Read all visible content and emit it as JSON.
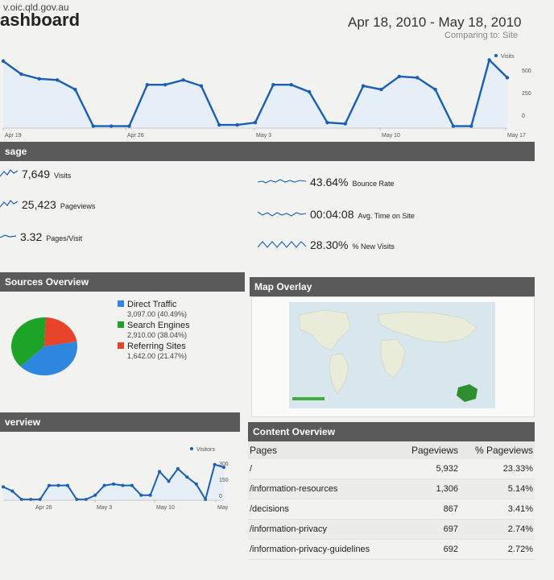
{
  "header": {
    "site_url": "v.oic.qld.gov.au",
    "title": "ashboard",
    "date_range": "Apr 18, 2010 - May 18, 2010",
    "comparing": "Comparing to: Site"
  },
  "colors": {
    "line": "#1a5fb4",
    "bar": "#5a5a5a",
    "direct": "#2e86de",
    "search": "#1ea329",
    "referring": "#e8432b"
  },
  "top_chart": {
    "legend": "Visits",
    "y_ticks": [
      "500",
      "250",
      "0"
    ],
    "x_ticks": [
      "Apr 19",
      "Apr 26",
      "May 3",
      "May 10",
      "May 17"
    ]
  },
  "usage": {
    "title": "sage",
    "metrics": [
      {
        "value": "7,649",
        "label": "Visits"
      },
      {
        "value": "25,423",
        "label": "Pageviews"
      },
      {
        "value": "3.32",
        "label": "Pages/Visit"
      },
      {
        "value": "43.64%",
        "label": "Bounce Rate"
      },
      {
        "value": "00:04:08",
        "label": "Avg. Time on Site"
      },
      {
        "value": "28.30%",
        "label": "% New Visits"
      }
    ]
  },
  "sources": {
    "title": "Sources Overview",
    "items": [
      {
        "name": "Direct Traffic",
        "detail": "3,097.00 (40.49%)"
      },
      {
        "name": "Search Engines",
        "detail": "2,910.00 (38.04%)"
      },
      {
        "name": "Referring Sites",
        "detail": "1,642.00 (21.47%)"
      }
    ]
  },
  "map": {
    "title": "Map Overlay"
  },
  "bottom_chart": {
    "section_title": "verview",
    "legend": "Visitors",
    "y_ticks": [
      "300",
      "150",
      "0"
    ],
    "x_ticks": [
      "Apr 26",
      "May 3",
      "May 10",
      "May"
    ]
  },
  "content": {
    "title": "Content Overview",
    "headers": [
      "Pages",
      "Pageviews",
      "% Pageviews"
    ],
    "rows": [
      [
        "/",
        "5,932",
        "23.33%"
      ],
      [
        "/information-resources",
        "1,306",
        "5.14%"
      ],
      [
        "/decisions",
        "867",
        "3.41%"
      ],
      [
        "/information-privacy",
        "697",
        "2.74%"
      ],
      [
        "/information-privacy-guidelines",
        "692",
        "2.72%"
      ]
    ]
  },
  "chart_data": [
    {
      "type": "line",
      "title": "",
      "series": [
        {
          "name": "Visits",
          "values": [
            560,
            450,
            410,
            400,
            320,
            10,
            10,
            10,
            360,
            360,
            400,
            350,
            20,
            20,
            40,
            360,
            360,
            300,
            40,
            30,
            350,
            320,
            430,
            420,
            320,
            10,
            10,
            570,
            420
          ]
        }
      ],
      "x_ticks": [
        "Apr 19",
        "Apr 26",
        "May 3",
        "May 10",
        "May 17"
      ],
      "ylim": [
        0,
        600
      ]
    },
    {
      "type": "pie",
      "title": "",
      "categories": [
        "Direct Traffic",
        "Search Engines",
        "Referring Sites"
      ],
      "values": [
        40.49,
        38.04,
        21.47
      ]
    },
    {
      "type": "line",
      "title": "",
      "series": [
        {
          "name": "Visitors",
          "values": [
            90,
            60,
            0,
            0,
            0,
            100,
            100,
            100,
            0,
            0,
            30,
            100,
            110,
            100,
            100,
            30,
            30,
            200,
            130,
            220,
            160,
            110,
            0,
            250,
            230
          ]
        }
      ],
      "x_ticks": [
        "Apr 26",
        "May 3",
        "May 10",
        "May"
      ],
      "ylim": [
        0,
        300
      ]
    }
  ]
}
